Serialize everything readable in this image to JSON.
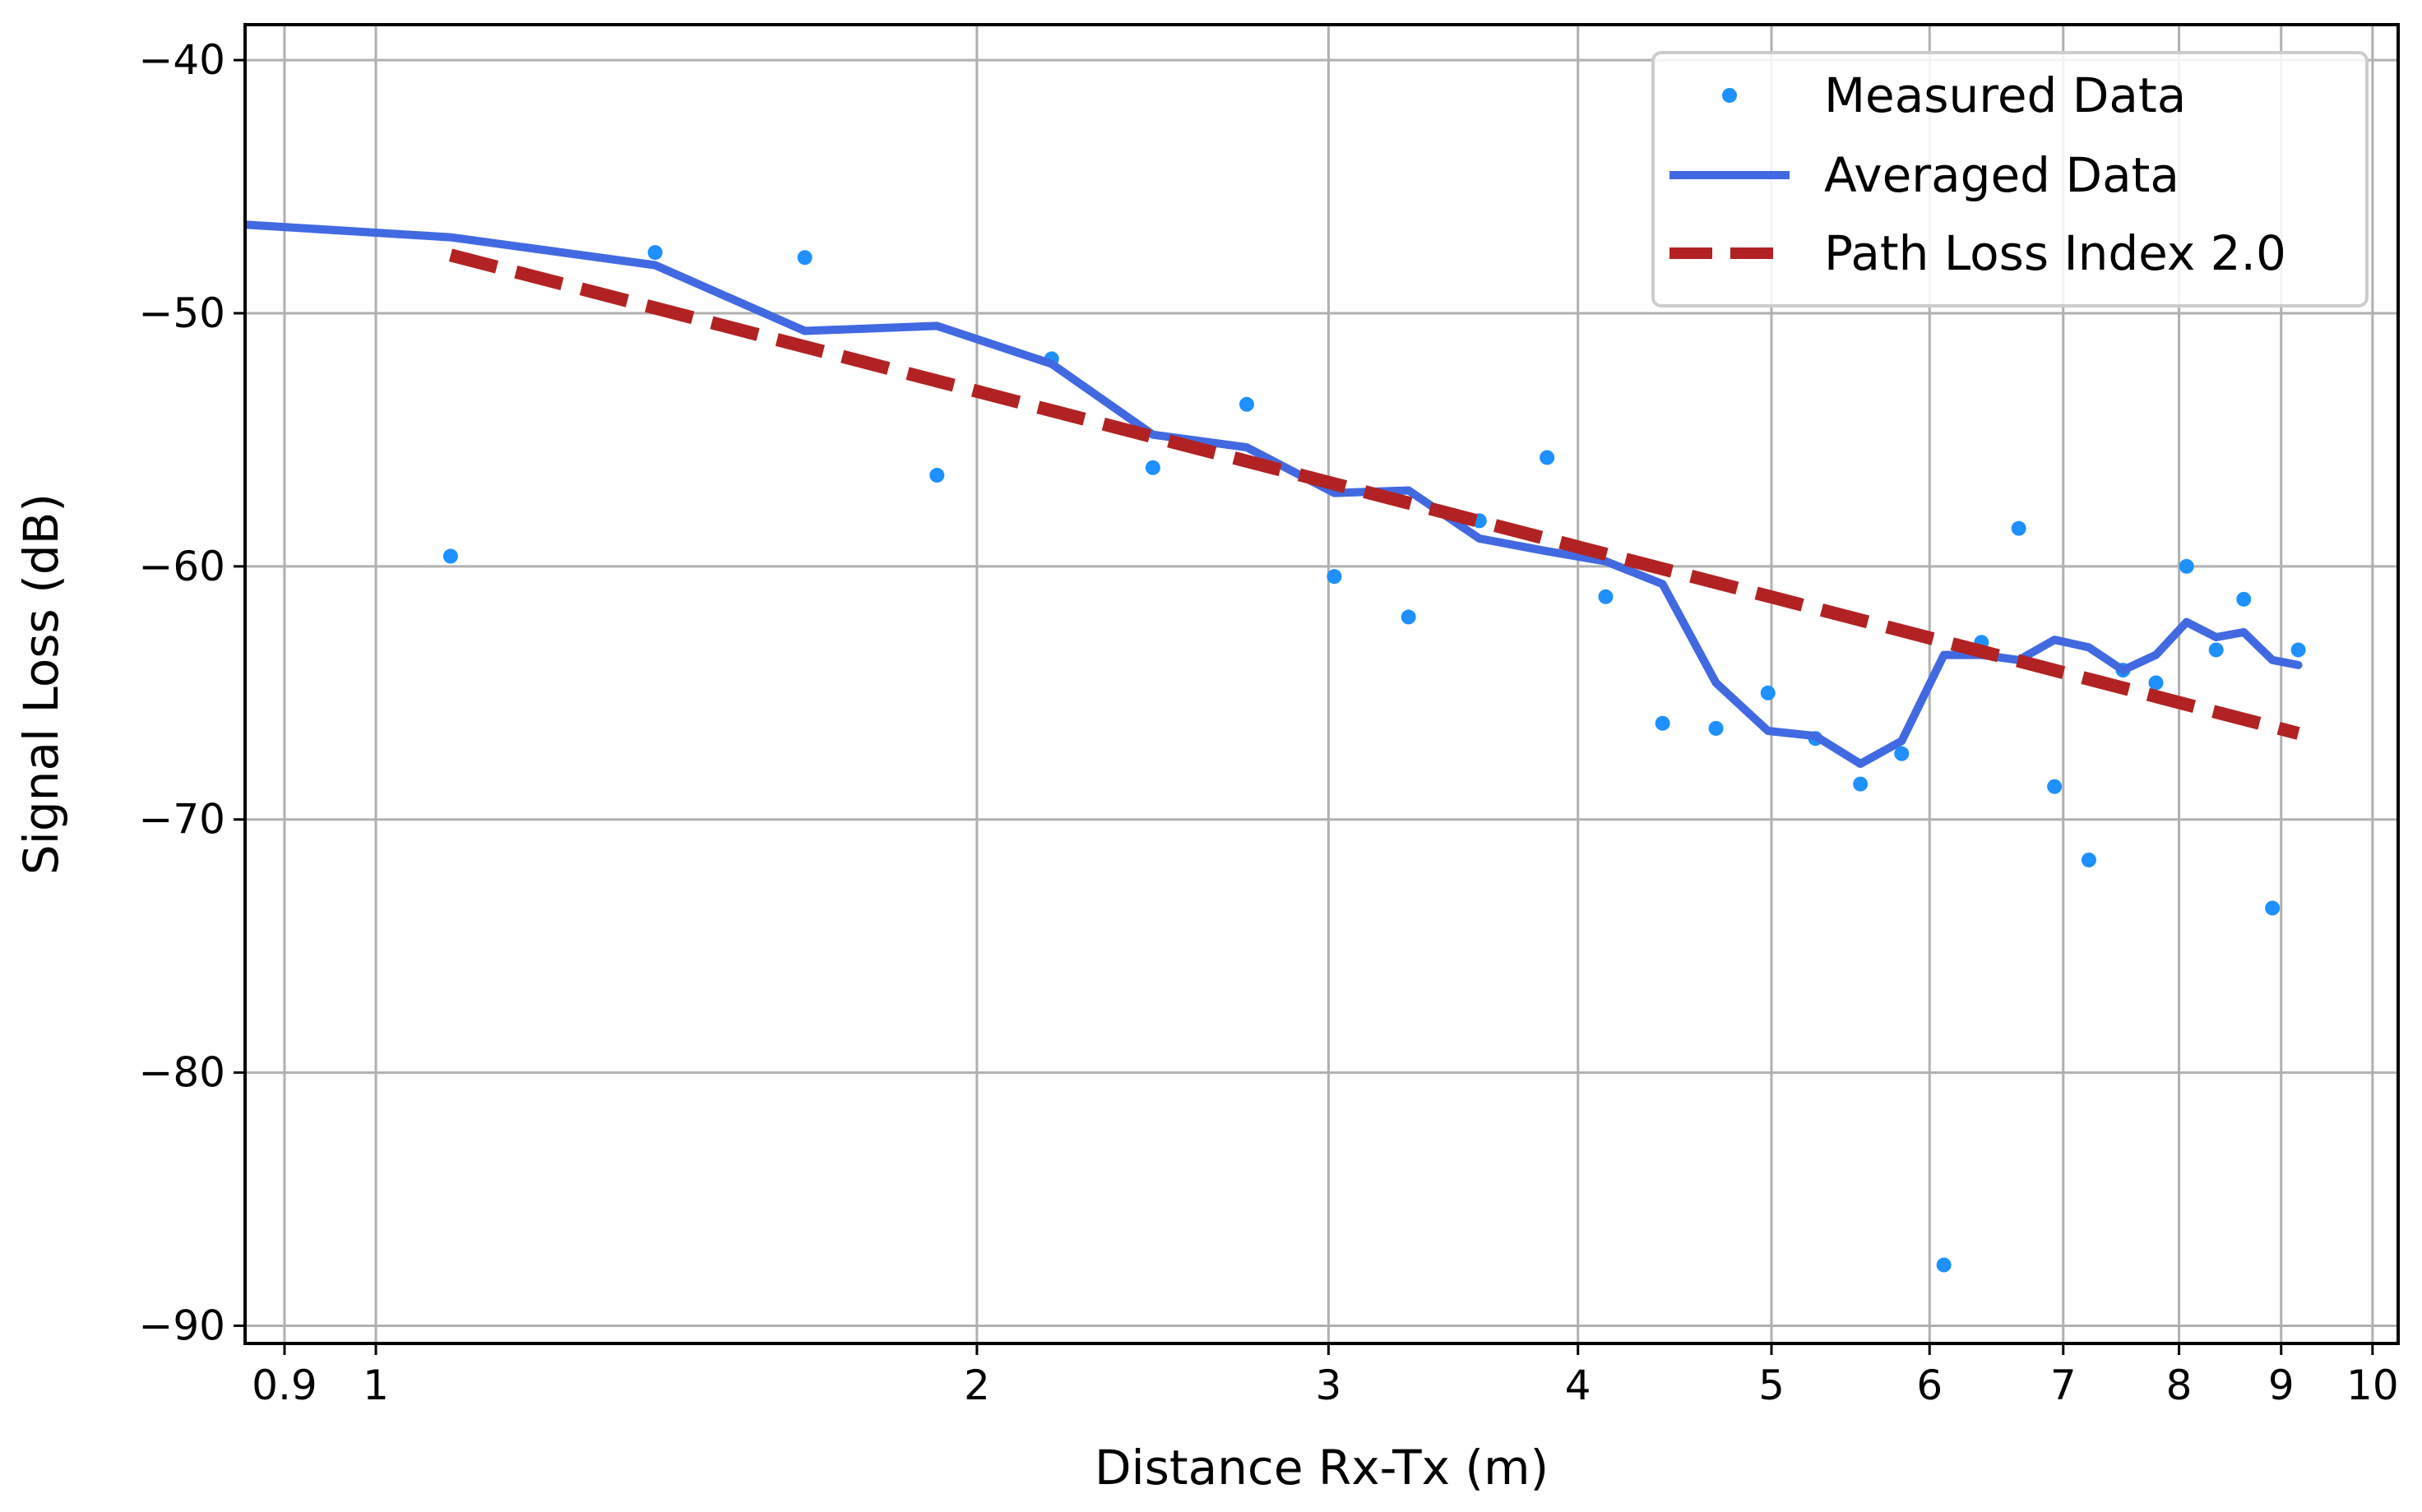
{
  "chart_data": {
    "type": "scatter+line",
    "xscale": "log",
    "title": "",
    "xlabel": "Distance Rx-Tx (m)",
    "ylabel": "Signal Loss (dB)",
    "xlim": [
      0.86,
      10.3
    ],
    "ylim": [
      -90.7,
      -38.6
    ],
    "x_ticks": [
      0.9,
      1,
      2,
      3,
      4,
      5,
      6,
      7,
      8,
      9,
      10
    ],
    "x_tick_labels": [
      "0.9",
      "1",
      "2",
      "3",
      "4",
      "5",
      "6",
      "7",
      "8",
      "9",
      "10"
    ],
    "y_ticks": [
      -40,
      -50,
      -60,
      -70,
      -80,
      -90
    ],
    "y_tick_labels": [
      "−40",
      "−50",
      "−60",
      "−70",
      "−80",
      "−90"
    ],
    "grid": true,
    "legend_position": "top-right",
    "series": [
      {
        "name": "Measured Data",
        "kind": "scatter",
        "color": "#1e90ff",
        "points": [
          [
            1.09,
            -59.6
          ],
          [
            1.38,
            -47.6
          ],
          [
            1.64,
            -47.8
          ],
          [
            1.91,
            -56.4
          ],
          [
            2.18,
            -51.8
          ],
          [
            2.45,
            -56.1
          ],
          [
            2.73,
            -53.6
          ],
          [
            3.02,
            -60.4
          ],
          [
            3.29,
            -62.0
          ],
          [
            3.57,
            -58.2
          ],
          [
            3.86,
            -55.7
          ],
          [
            4.13,
            -61.2
          ],
          [
            4.41,
            -66.2
          ],
          [
            4.69,
            -66.4
          ],
          [
            4.98,
            -65.0
          ],
          [
            5.26,
            -66.8
          ],
          [
            5.54,
            -68.6
          ],
          [
            5.81,
            -67.4
          ],
          [
            6.1,
            -87.6
          ],
          [
            6.37,
            -63.0
          ],
          [
            6.65,
            -58.5
          ],
          [
            6.93,
            -68.7
          ],
          [
            7.21,
            -71.6
          ],
          [
            7.5,
            -64.1
          ],
          [
            7.79,
            -64.6
          ],
          [
            8.07,
            -60.0
          ],
          [
            8.35,
            -63.3
          ],
          [
            8.62,
            -61.3
          ],
          [
            8.91,
            -73.5
          ],
          [
            9.18,
            -63.3
          ]
        ]
      },
      {
        "name": "Averaged Data",
        "kind": "line",
        "color": "#4169e1",
        "points": [
          [
            0.86,
            -46.5
          ],
          [
            1.09,
            -47.0
          ],
          [
            1.38,
            -48.1
          ],
          [
            1.64,
            -50.7
          ],
          [
            1.91,
            -50.5
          ],
          [
            2.18,
            -52.0
          ],
          [
            2.45,
            -54.8
          ],
          [
            2.73,
            -55.3
          ],
          [
            3.02,
            -57.1
          ],
          [
            3.29,
            -57.0
          ],
          [
            3.57,
            -58.9
          ],
          [
            3.86,
            -59.4
          ],
          [
            4.13,
            -59.8
          ],
          [
            4.41,
            -60.7
          ],
          [
            4.69,
            -64.6
          ],
          [
            4.98,
            -66.5
          ],
          [
            5.26,
            -66.7
          ],
          [
            5.54,
            -67.8
          ],
          [
            5.81,
            -66.9
          ],
          [
            6.1,
            -63.5
          ],
          [
            6.37,
            -63.5
          ],
          [
            6.65,
            -63.7
          ],
          [
            6.93,
            -62.9
          ],
          [
            7.21,
            -63.2
          ],
          [
            7.5,
            -64.1
          ],
          [
            7.79,
            -63.5
          ],
          [
            8.07,
            -62.2
          ],
          [
            8.35,
            -62.8
          ],
          [
            8.62,
            -62.6
          ],
          [
            8.91,
            -63.7
          ],
          [
            9.18,
            -63.9
          ]
        ]
      },
      {
        "name": "Path Loss Index 2.0",
        "kind": "dashed-line",
        "color": "#b22222",
        "points": [
          [
            1.09,
            -47.7
          ],
          [
            9.18,
            -66.6
          ]
        ]
      }
    ]
  }
}
